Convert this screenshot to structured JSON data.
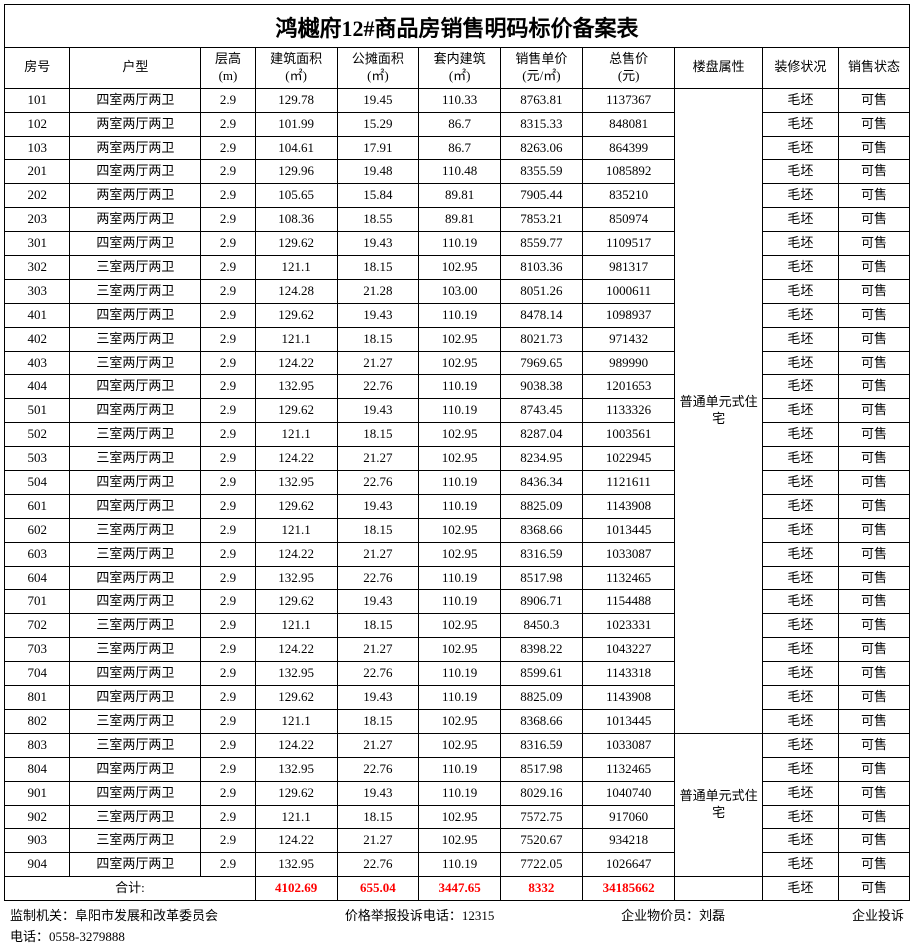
{
  "title": "鸿樾府12#商品房销售明码标价备案表",
  "columns": [
    {
      "key": "room",
      "label": "房号"
    },
    {
      "key": "type",
      "label": "户型"
    },
    {
      "key": "height",
      "label": "层高",
      "unit": "(m)"
    },
    {
      "key": "area",
      "label": "建筑面积",
      "unit": "(㎡)"
    },
    {
      "key": "share",
      "label": "公摊面积",
      "unit": "(㎡)"
    },
    {
      "key": "inner",
      "label": "套内建筑",
      "unit": "(㎡)"
    },
    {
      "key": "unit",
      "label": "销售单价",
      "unit": "(元/㎡)"
    },
    {
      "key": "total",
      "label": "总售价",
      "unit": "(元)"
    },
    {
      "key": "attr",
      "label": "楼盘属性"
    },
    {
      "key": "deco",
      "label": "装修状况"
    },
    {
      "key": "status",
      "label": "销售状态"
    }
  ],
  "attr_text": "普通单元式住宅",
  "deco_text": "毛坯",
  "status_text": "可售",
  "height_text": "2.9",
  "rows": [
    {
      "room": "101",
      "type": "四室两厅两卫",
      "area": "129.78",
      "share": "19.45",
      "inner": "110.33",
      "unit": "8763.81",
      "total": "1137367"
    },
    {
      "room": "102",
      "type": "两室两厅两卫",
      "area": "101.99",
      "share": "15.29",
      "inner": "86.7",
      "unit": "8315.33",
      "total": "848081"
    },
    {
      "room": "103",
      "type": "两室两厅两卫",
      "area": "104.61",
      "share": "17.91",
      "inner": "86.7",
      "unit": "8263.06",
      "total": "864399"
    },
    {
      "room": "201",
      "type": "四室两厅两卫",
      "area": "129.96",
      "share": "19.48",
      "inner": "110.48",
      "unit": "8355.59",
      "total": "1085892"
    },
    {
      "room": "202",
      "type": "两室两厅两卫",
      "area": "105.65",
      "share": "15.84",
      "inner": "89.81",
      "unit": "7905.44",
      "total": "835210"
    },
    {
      "room": "203",
      "type": "两室两厅两卫",
      "area": "108.36",
      "share": "18.55",
      "inner": "89.81",
      "unit": "7853.21",
      "total": "850974"
    },
    {
      "room": "301",
      "type": "四室两厅两卫",
      "area": "129.62",
      "share": "19.43",
      "inner": "110.19",
      "unit": "8559.77",
      "total": "1109517"
    },
    {
      "room": "302",
      "type": "三室两厅两卫",
      "area": "121.1",
      "share": "18.15",
      "inner": "102.95",
      "unit": "8103.36",
      "total": "981317"
    },
    {
      "room": "303",
      "type": "三室两厅两卫",
      "area": "124.28",
      "share": "21.28",
      "inner": "103.00",
      "unit": "8051.26",
      "total": "1000611"
    },
    {
      "room": "401",
      "type": "四室两厅两卫",
      "area": "129.62",
      "share": "19.43",
      "inner": "110.19",
      "unit": "8478.14",
      "total": "1098937"
    },
    {
      "room": "402",
      "type": "三室两厅两卫",
      "area": "121.1",
      "share": "18.15",
      "inner": "102.95",
      "unit": "8021.73",
      "total": "971432"
    },
    {
      "room": "403",
      "type": "三室两厅两卫",
      "area": "124.22",
      "share": "21.27",
      "inner": "102.95",
      "unit": "7969.65",
      "total": "989990"
    },
    {
      "room": "404",
      "type": "四室两厅两卫",
      "area": "132.95",
      "share": "22.76",
      "inner": "110.19",
      "unit": "9038.38",
      "total": "1201653"
    },
    {
      "room": "501",
      "type": "四室两厅两卫",
      "area": "129.62",
      "share": "19.43",
      "inner": "110.19",
      "unit": "8743.45",
      "total": "1133326"
    },
    {
      "room": "502",
      "type": "三室两厅两卫",
      "area": "121.1",
      "share": "18.15",
      "inner": "102.95",
      "unit": "8287.04",
      "total": "1003561"
    },
    {
      "room": "503",
      "type": "三室两厅两卫",
      "area": "124.22",
      "share": "21.27",
      "inner": "102.95",
      "unit": "8234.95",
      "total": "1022945"
    },
    {
      "room": "504",
      "type": "四室两厅两卫",
      "area": "132.95",
      "share": "22.76",
      "inner": "110.19",
      "unit": "8436.34",
      "total": "1121611"
    },
    {
      "room": "601",
      "type": "四室两厅两卫",
      "area": "129.62",
      "share": "19.43",
      "inner": "110.19",
      "unit": "8825.09",
      "total": "1143908"
    },
    {
      "room": "602",
      "type": "三室两厅两卫",
      "area": "121.1",
      "share": "18.15",
      "inner": "102.95",
      "unit": "8368.66",
      "total": "1013445"
    },
    {
      "room": "603",
      "type": "三室两厅两卫",
      "area": "124.22",
      "share": "21.27",
      "inner": "102.95",
      "unit": "8316.59",
      "total": "1033087"
    },
    {
      "room": "604",
      "type": "四室两厅两卫",
      "area": "132.95",
      "share": "22.76",
      "inner": "110.19",
      "unit": "8517.98",
      "total": "1132465"
    },
    {
      "room": "701",
      "type": "四室两厅两卫",
      "area": "129.62",
      "share": "19.43",
      "inner": "110.19",
      "unit": "8906.71",
      "total": "1154488"
    },
    {
      "room": "702",
      "type": "三室两厅两卫",
      "area": "121.1",
      "share": "18.15",
      "inner": "102.95",
      "unit": "8450.3",
      "total": "1023331"
    },
    {
      "room": "703",
      "type": "三室两厅两卫",
      "area": "124.22",
      "share": "21.27",
      "inner": "102.95",
      "unit": "8398.22",
      "total": "1043227"
    },
    {
      "room": "704",
      "type": "四室两厅两卫",
      "area": "132.95",
      "share": "22.76",
      "inner": "110.19",
      "unit": "8599.61",
      "total": "1143318"
    },
    {
      "room": "801",
      "type": "四室两厅两卫",
      "area": "129.62",
      "share": "19.43",
      "inner": "110.19",
      "unit": "8825.09",
      "total": "1143908"
    },
    {
      "room": "802",
      "type": "三室两厅两卫",
      "area": "121.1",
      "share": "18.15",
      "inner": "102.95",
      "unit": "8368.66",
      "total": "1013445"
    },
    {
      "room": "803",
      "type": "三室两厅两卫",
      "area": "124.22",
      "share": "21.27",
      "inner": "102.95",
      "unit": "8316.59",
      "total": "1033087"
    },
    {
      "room": "804",
      "type": "四室两厅两卫",
      "area": "132.95",
      "share": "22.76",
      "inner": "110.19",
      "unit": "8517.98",
      "total": "1132465"
    },
    {
      "room": "901",
      "type": "四室两厅两卫",
      "area": "129.62",
      "share": "19.43",
      "inner": "110.19",
      "unit": "8029.16",
      "total": "1040740"
    },
    {
      "room": "902",
      "type": "三室两厅两卫",
      "area": "121.1",
      "share": "18.15",
      "inner": "102.95",
      "unit": "7572.75",
      "total": "917060"
    },
    {
      "room": "903",
      "type": "三室两厅两卫",
      "area": "124.22",
      "share": "21.27",
      "inner": "102.95",
      "unit": "7520.67",
      "total": "934218"
    },
    {
      "room": "904",
      "type": "四室两厅两卫",
      "area": "132.95",
      "share": "22.76",
      "inner": "110.19",
      "unit": "7722.05",
      "total": "1026647"
    }
  ],
  "attr_groups": [
    {
      "start": 0,
      "span": 27
    },
    {
      "start": 27,
      "span": 6
    }
  ],
  "summary": {
    "label": "合计:",
    "area": "4102.69",
    "share": "655.04",
    "inner": "3447.65",
    "unit": "8332",
    "total": "34185662"
  },
  "footer": {
    "supervisor_label": "监制机关：",
    "supervisor": "阜阳市发展和改革委员会",
    "hotline_label": "价格举报投诉电话：",
    "hotline": "12315",
    "pricer_label": "企业物价员：",
    "pricer": "刘磊",
    "complaint_label": "企业投诉",
    "phone_label": "电话：",
    "phone": "0558-3279888"
  }
}
